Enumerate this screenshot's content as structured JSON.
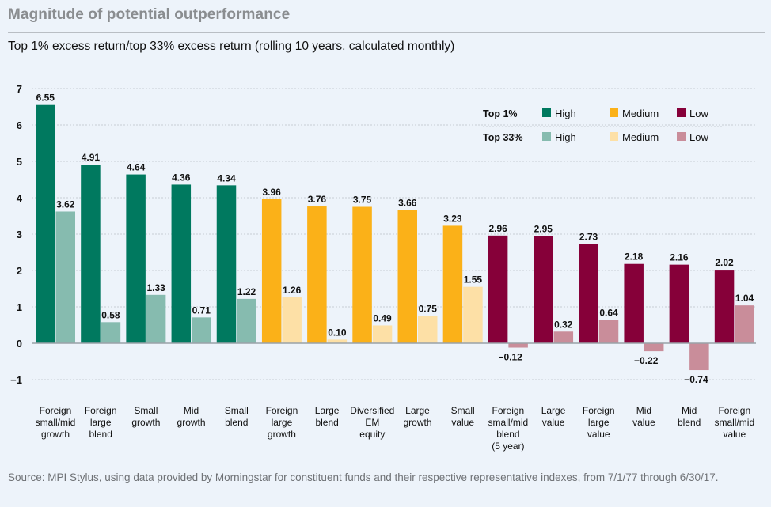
{
  "header": {
    "title": "Magnitude of potential outperformance",
    "subtitle": "Top 1% excess return/top 33% excess return (rolling 10 years, calculated monthly)"
  },
  "footer": {
    "source": "Source: MPI Stylus, using data provided by Morningstar for constituent funds and their respective representative indexes, from 7/1/77 through 6/30/17."
  },
  "colors": {
    "top1": {
      "High": "#00795f",
      "Medium": "#fbb118",
      "Low": "#860039"
    },
    "top33": {
      "High": "#86bbaf",
      "Medium": "#fde0a6",
      "Low": "#c98d9a"
    },
    "grid": "#c7cdd4",
    "axis": "#9aa1a8"
  },
  "chart_data": {
    "type": "bar",
    "title": "Magnitude of potential outperformance",
    "subtitle": "Top 1% excess return/top 33% excess return (rolling 10 years, calculated monthly)",
    "xlabel": "",
    "ylabel": "",
    "ylim": [
      -1,
      7
    ],
    "yticks": [
      7,
      6,
      5,
      4,
      3,
      2,
      1,
      0,
      -1
    ],
    "grid": true,
    "legend_position": "top-right",
    "legend": {
      "rows": [
        {
          "label": "Top 1%",
          "items": [
            "High",
            "Medium",
            "Low"
          ]
        },
        {
          "label": "Top 33%",
          "items": [
            "High",
            "Medium",
            "Low"
          ]
        }
      ]
    },
    "categories": [
      [
        "Foreign",
        "small/mid",
        "growth"
      ],
      [
        "Foreign",
        "large",
        "blend"
      ],
      [
        "Small",
        "growth"
      ],
      [
        "Mid",
        "growth"
      ],
      [
        "Small",
        "blend"
      ],
      [
        "Foreign",
        "large",
        "growth"
      ],
      [
        "Large",
        "blend"
      ],
      [
        "Diversified",
        "EM",
        "equity"
      ],
      [
        "Large",
        "growth"
      ],
      [
        "Small",
        "value"
      ],
      [
        "Foreign",
        "small/mid",
        "blend",
        "(5 year)"
      ],
      [
        "Large",
        "value"
      ],
      [
        "Foreign",
        "large",
        "value"
      ],
      [
        "Mid",
        "value"
      ],
      [
        "Mid",
        "blend"
      ],
      [
        "Foreign",
        "small/mid",
        "value"
      ]
    ],
    "groups": [
      "High",
      "High",
      "High",
      "High",
      "High",
      "Medium",
      "Medium",
      "Medium",
      "Medium",
      "Medium",
      "Low",
      "Low",
      "Low",
      "Low",
      "Low",
      "Low"
    ],
    "series": [
      {
        "name": "Top 1%",
        "values": [
          6.55,
          4.91,
          4.64,
          4.36,
          4.34,
          3.96,
          3.76,
          3.75,
          3.66,
          3.23,
          2.96,
          2.95,
          2.73,
          2.18,
          2.16,
          2.02
        ],
        "labels": [
          "6.55",
          "4.91",
          "4.64",
          "4.36",
          "4.34",
          "3.96",
          "3.76",
          "3.75",
          "3.66",
          "3.23",
          "2.96",
          "2.95",
          "2.73",
          "2.18",
          "2.16",
          "2.02"
        ]
      },
      {
        "name": "Top 33%",
        "values": [
          3.62,
          0.58,
          1.33,
          0.71,
          1.22,
          1.26,
          0.1,
          0.49,
          0.75,
          1.55,
          -0.12,
          0.32,
          0.64,
          -0.22,
          -0.74,
          1.04
        ],
        "labels": [
          "3.62",
          "0.58",
          "1.33",
          "0.71",
          "1.22",
          "1.26",
          "0.10",
          "0.49",
          "0.75",
          "1.55",
          "−0.12",
          "0.32",
          "0.64",
          "−0.22",
          "−0.74",
          "1.04"
        ]
      }
    ]
  }
}
